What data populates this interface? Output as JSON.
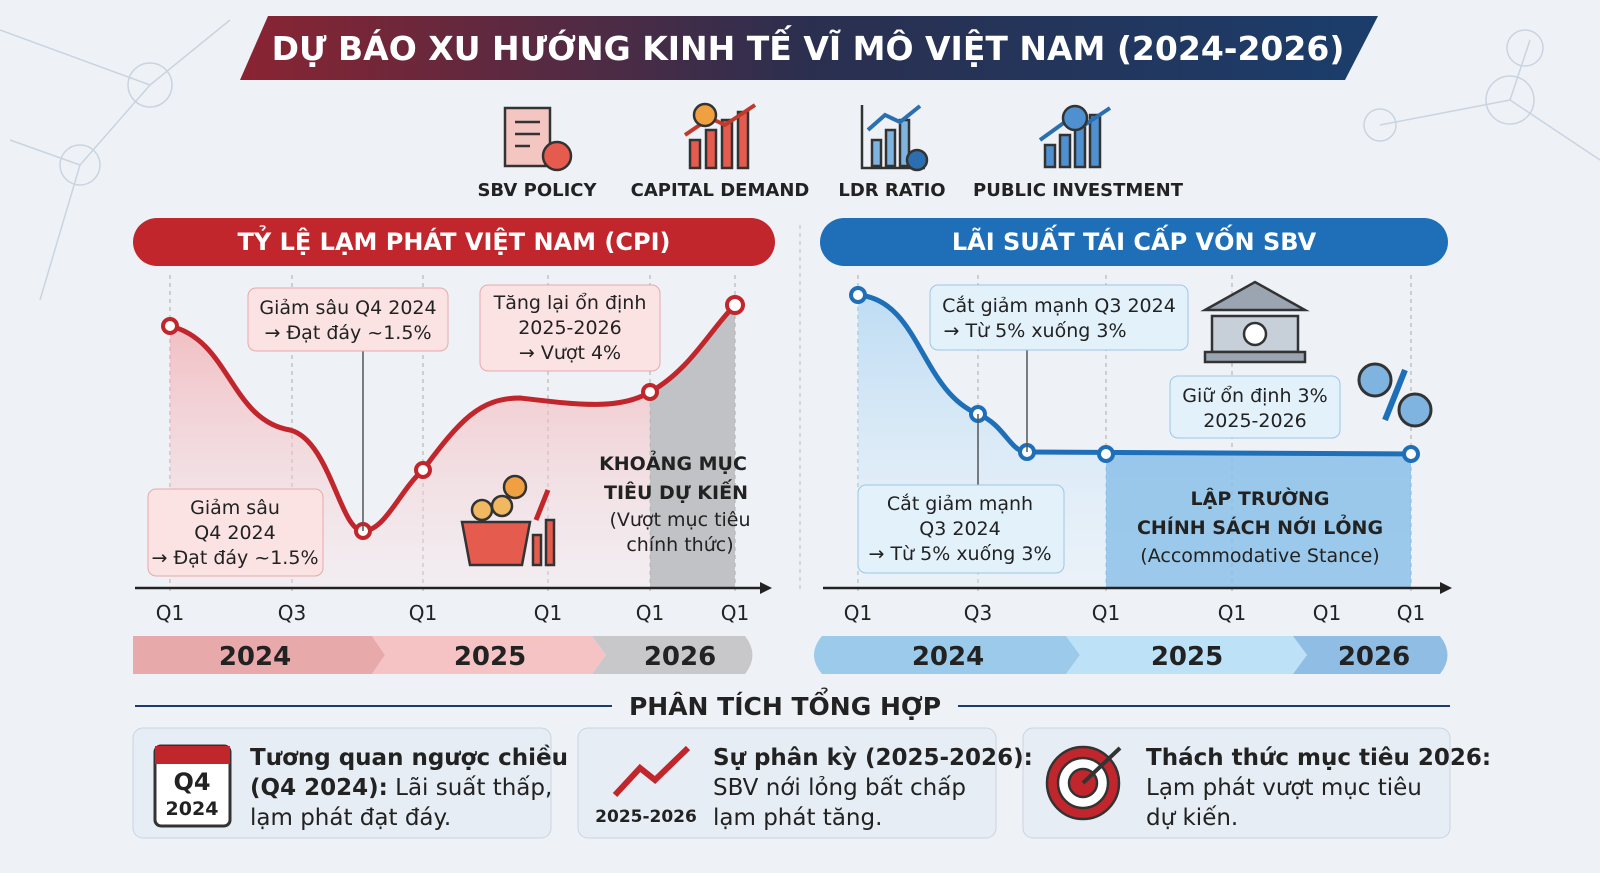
{
  "title": "DỰ BÁO XU HƯỚNG KINH TẾ VĨ MÔ VIỆT NAM (2024-2026)",
  "icons": [
    "SBV POLICY",
    "CAPITAL DEMAND",
    "LDR RATIO",
    "PUBLIC INVESTMENT"
  ],
  "cpi": {
    "header": "TỶ LỆ LẠM PHÁT VIỆT NAM (CPI)",
    "ticks": [
      "Q1",
      "Q3",
      "Q1",
      "Q1",
      "Q1",
      "Q1"
    ],
    "years": [
      "2024",
      "2025",
      "2026"
    ],
    "callout_top": [
      "Giảm sâu Q4 2024",
      "→ Đạt đáy ~1.5%"
    ],
    "callout_rise": [
      "Tăng lại ổn định",
      "2025-2026",
      "→ Vượt 4%"
    ],
    "callout_low": [
      "Giảm sâu",
      "Q4 2024",
      "→ Đạt đáy ~1.5%"
    ],
    "target": [
      "KHOẢNG MỤC",
      "TIÊU DỰ KIẾN",
      "(Vượt mục tiêu",
      "chính thức)"
    ]
  },
  "sbv": {
    "header": "LÃI SUẤT TÁI CẤP VỐN SBV",
    "ticks": [
      "Q1",
      "Q3",
      "Q1",
      "Q1",
      "Q1",
      "Q1"
    ],
    "years": [
      "2024",
      "2025",
      "2026"
    ],
    "callout_top": [
      "Cắt giảm mạnh Q3 2024",
      "→ Từ 5% xuống 3%"
    ],
    "callout_low": [
      "Cắt giảm mạnh",
      "Q3 2024",
      "→ Từ 5% xuống 3%"
    ],
    "callout_hold": [
      "Giữ ổn định 3%",
      "2025-2026"
    ],
    "stance": [
      "LẬP TRƯỜNG",
      "CHÍNH SÁCH NỚI LỎNG",
      "(Accommodative Stance)"
    ]
  },
  "analysis": {
    "title": "PHÂN TÍCH TỔNG HỢP",
    "cards": [
      {
        "badge": [
          "Q4",
          "2024"
        ],
        "bold": [
          "Tương quan ngược chiều",
          "(Q4 2024):"
        ],
        "text": [
          " Lãi suất thấp,",
          "lạm phát đạt đáy."
        ]
      },
      {
        "badge": [
          "2025-2026"
        ],
        "bold": [
          "Sự phân kỳ (2025-2026):"
        ],
        "text": [
          "SBV nới lỏng bất chấp",
          "lạm phát tăng."
        ]
      },
      {
        "bold": [
          "Thách thức mục tiêu 2026:"
        ],
        "text": [
          "Lạm phát vượt mục tiêu",
          "dự kiến."
        ]
      }
    ]
  }
}
